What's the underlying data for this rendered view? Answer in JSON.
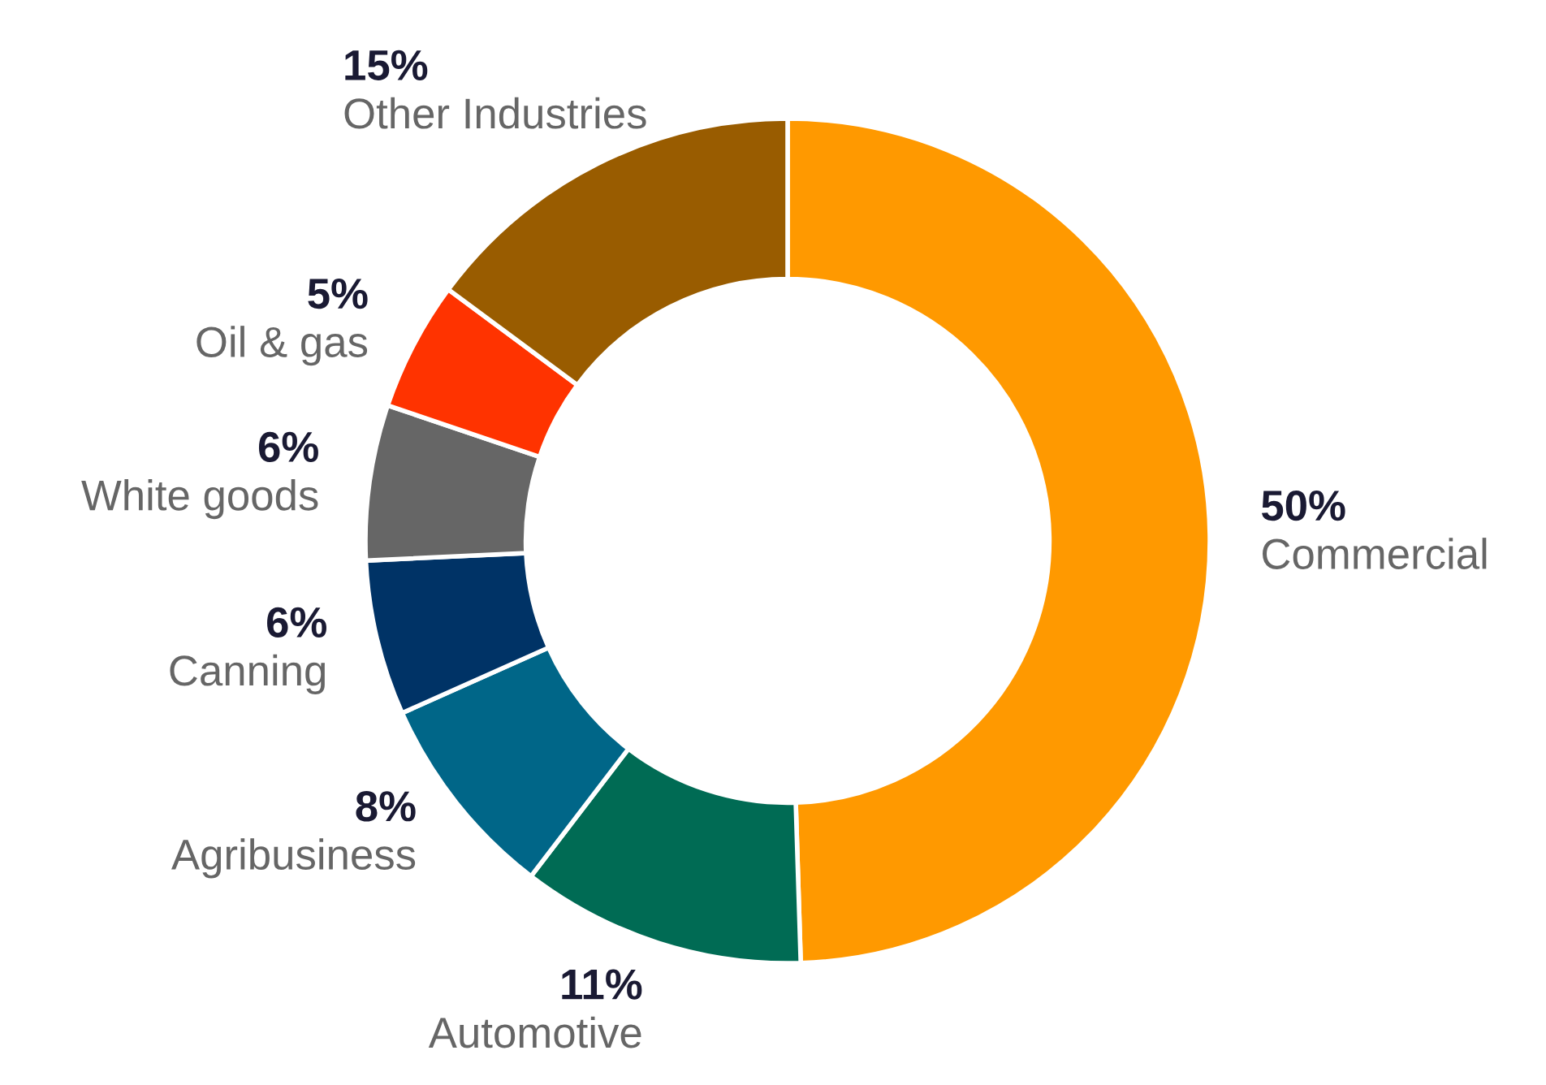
{
  "chart_data": {
    "type": "donut",
    "categories": [
      "Commercial",
      "Automotive",
      "Agribusiness",
      "Canning",
      "White goods",
      "Oil & gas",
      "Other Industries"
    ],
    "values": [
      50,
      11,
      8,
      6,
      6,
      5,
      15
    ],
    "value_labels": [
      "50%",
      "11%",
      "8%",
      "6%",
      "6%",
      "5%",
      "15%"
    ],
    "colors": [
      "#ff9900",
      "#006b54",
      "#006688",
      "#003366",
      "#666666",
      "#ff3300",
      "#995c00"
    ],
    "legend": false
  }
}
